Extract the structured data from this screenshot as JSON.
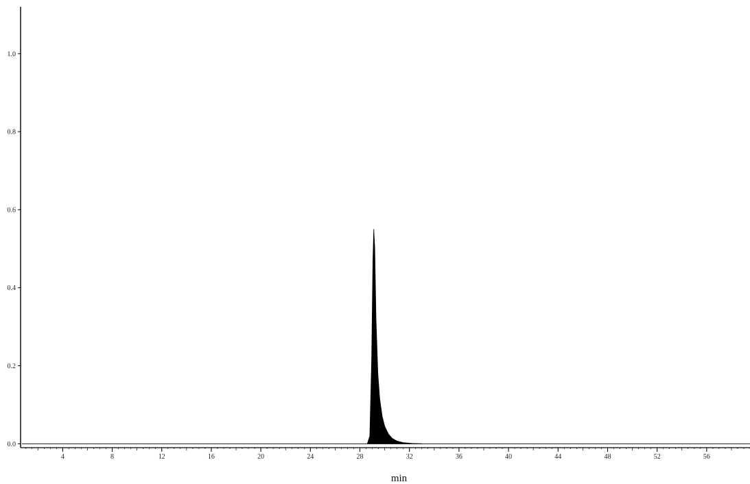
{
  "chart_data": {
    "type": "area",
    "xlabel": "min",
    "ylabel": "",
    "xlim": [
      0.6,
      59.5
    ],
    "ylim": [
      -0.01,
      1.12
    ],
    "x_ticks": [
      4,
      8,
      12,
      16,
      20,
      24,
      28,
      32,
      36,
      40,
      44,
      48,
      52,
      56
    ],
    "x_tick_labels": [
      "4",
      "8",
      "12",
      "16",
      "20",
      "24",
      "28",
      "32",
      "36",
      "40",
      "44",
      "48",
      "52",
      "56"
    ],
    "y_ticks": [
      0.0,
      0.2,
      0.4,
      0.6,
      0.8,
      1.0
    ],
    "y_tick_labels": [
      "0.0",
      "0.2",
      "0.4",
      "0.6",
      "0.8",
      "1.0"
    ],
    "grid": false,
    "baseline": 0.0,
    "series": [
      {
        "color": "#000000",
        "x": [
          28.6,
          28.8,
          28.95,
          29.05,
          29.12,
          29.2,
          29.3,
          29.45,
          29.6,
          29.8,
          30.0,
          30.3,
          30.6,
          31.0,
          31.5,
          32.2,
          33.0
        ],
        "y": [
          0.0,
          0.02,
          0.22,
          0.47,
          0.55,
          0.5,
          0.32,
          0.18,
          0.115,
          0.07,
          0.045,
          0.025,
          0.014,
          0.007,
          0.003,
          0.001,
          0.0
        ]
      }
    ]
  },
  "colors": {
    "axis": "#000000",
    "trace": "#000000",
    "background": "#ffffff"
  }
}
